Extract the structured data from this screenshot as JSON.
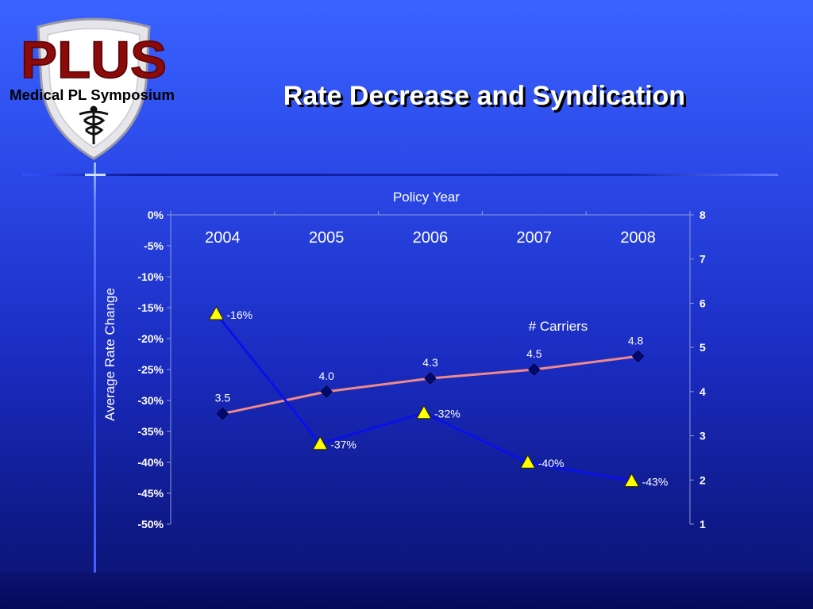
{
  "slide": {
    "title": "Rate Decrease and Syndication",
    "logo_text_main": "PLUS",
    "logo_text_sub": "Medical PL Symposium"
  },
  "colors": {
    "background_top": "#3a63ff",
    "background_bottom": "#0a1370",
    "rate_line": "#0a10e8",
    "rate_marker": "#ffff00",
    "carriers_line": "#f08a8a",
    "carriers_marker": "#000a6e",
    "logo_red": "#8b0a0a"
  },
  "chart_data": {
    "type": "line",
    "xlabel": "Policy Year",
    "ylabel": "Average Rate Change",
    "categories": [
      "2004",
      "2005",
      "2006",
      "2007",
      "2008"
    ],
    "y_left": {
      "range": [
        -50,
        0
      ],
      "ticks": [
        "0%",
        "-5%",
        "-10%",
        "-15%",
        "-20%",
        "-25%",
        "-30%",
        "-35%",
        "-40%",
        "-45%",
        "-50%"
      ]
    },
    "y_right": {
      "range": [
        1,
        8
      ],
      "ticks": [
        "8",
        "7",
        "6",
        "5",
        "4",
        "3",
        "2",
        "1"
      ]
    },
    "grid": false,
    "series": [
      {
        "axis": "left",
        "values": [
          -16,
          -37,
          -32,
          -40,
          -43
        ],
        "labels": [
          "-16%",
          "-37%",
          "-32%",
          "-40%",
          "-43%"
        ],
        "marker": "triangle"
      },
      {
        "name": "# Carriers",
        "axis": "right",
        "values": [
          3.5,
          4.0,
          4.3,
          4.5,
          4.8
        ],
        "labels": [
          "3.5",
          "4.0",
          "4.3",
          "4.5",
          "4.8"
        ],
        "marker": "diamond"
      }
    ]
  }
}
